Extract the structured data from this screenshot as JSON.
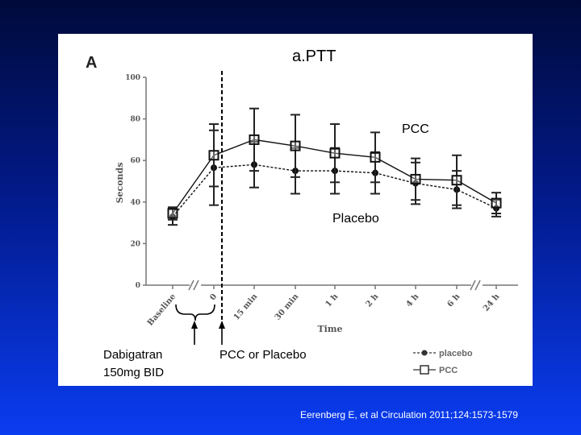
{
  "panel_label": "A",
  "citation": "Eerenberg E, et al Circulation 2011;124:1573-1579",
  "annotations": {
    "pcc": "PCC",
    "placebo": "Placebo",
    "dose_line1": "Dabigatran",
    "dose_line2": "150mg BID",
    "infusion": "PCC or Placebo"
  },
  "chart_data": {
    "type": "line",
    "title": "a.PTT",
    "xlabel": "Time",
    "ylabel": "Seconds",
    "ylim": [
      0,
      100
    ],
    "yticks": [
      0,
      20,
      40,
      60,
      80,
      100
    ],
    "categories": [
      "Baseline",
      "0",
      "15 min",
      "30 min",
      "1 h",
      "2 h",
      "4 h",
      "6 h",
      "24 h"
    ],
    "axis_breaks_after": [
      "Baseline",
      "6 h"
    ],
    "series": [
      {
        "name": "placebo",
        "color": "#111111",
        "line": "dashed",
        "marker": "circle",
        "values": [
          33,
          56.5,
          58,
          55,
          55,
          54,
          49,
          46,
          37
        ],
        "err": [
          4,
          18,
          11,
          11,
          11,
          10,
          10,
          9,
          4
        ]
      },
      {
        "name": "PCC",
        "color": "#111111",
        "line": "solid",
        "marker": "square",
        "values": [
          34.5,
          62.5,
          70,
          67,
          63.5,
          61.5,
          51,
          50.5,
          39.5
        ],
        "err": [
          3,
          15,
          15,
          15,
          14,
          12,
          10,
          12,
          5
        ]
      }
    ],
    "legend": {
      "position": "bottom-right"
    },
    "grid": false
  }
}
